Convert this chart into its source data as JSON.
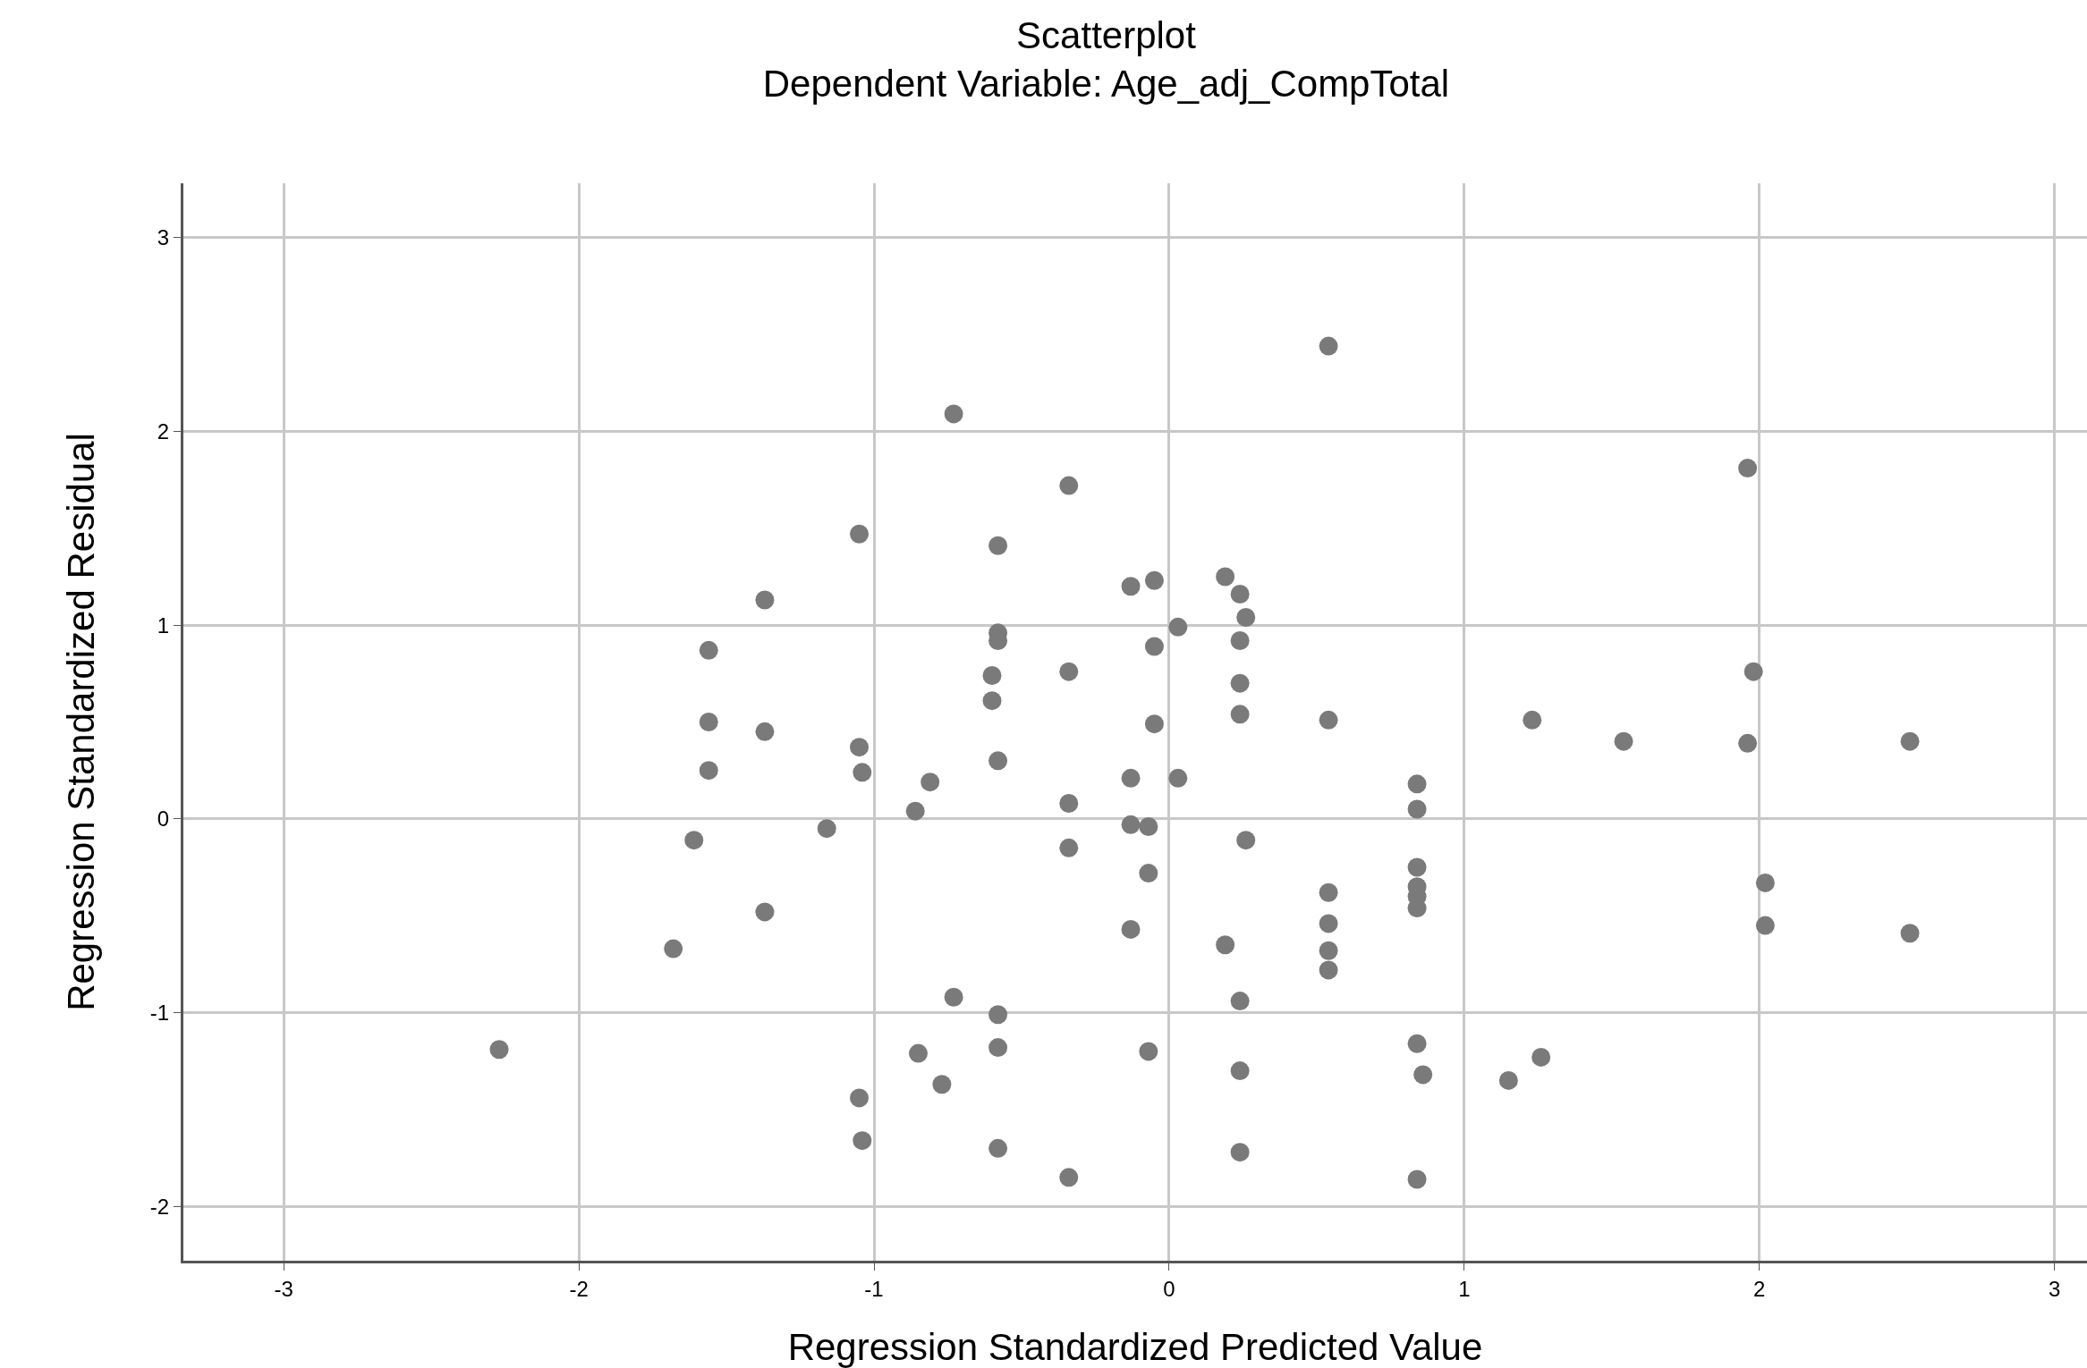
{
  "chart_data": {
    "type": "scatter",
    "title": "Scatterplot",
    "subtitle": "Dependent Variable: Age_adj_CompTotal",
    "xlabel": "Regression Standardized Predicted Value",
    "ylabel": "Regression Standardized Residual",
    "x": [
      -2.27,
      -1.68,
      -1.61,
      -1.56,
      -1.56,
      -1.56,
      -1.37,
      -1.37,
      -1.37,
      -1.16,
      -1.05,
      -1.05,
      -1.04,
      -1.05,
      -1.04,
      -0.86,
      -0.81,
      -0.85,
      -0.77,
      -0.73,
      -0.73,
      -0.6,
      -0.6,
      -0.58,
      -0.58,
      -0.58,
      -0.58,
      -0.58,
      -0.58,
      -0.58,
      -0.34,
      -0.34,
      -0.34,
      -0.34,
      -0.34,
      -0.13,
      -0.13,
      -0.13,
      -0.13,
      -0.07,
      -0.07,
      -0.07,
      -0.05,
      -0.05,
      -0.05,
      0.03,
      0.03,
      0.19,
      0.19,
      0.24,
      0.24,
      0.24,
      0.24,
      0.24,
      0.24,
      0.24,
      0.26,
      0.26,
      0.54,
      0.54,
      0.54,
      0.54,
      0.54,
      0.54,
      0.84,
      0.84,
      0.84,
      0.84,
      0.84,
      0.84,
      0.84,
      0.86,
      0.84,
      1.15,
      1.23,
      1.26,
      1.54,
      1.96,
      1.98,
      1.96,
      2.02,
      2.02,
      2.51,
      2.51
    ],
    "values": [
      -1.19,
      -0.67,
      -0.11,
      0.87,
      0.5,
      0.25,
      1.13,
      0.45,
      -0.48,
      -0.05,
      1.47,
      0.37,
      0.24,
      -1.44,
      -1.66,
      0.04,
      0.19,
      -1.21,
      -1.37,
      2.09,
      -0.92,
      0.74,
      0.61,
      1.41,
      0.96,
      0.92,
      0.3,
      -1.01,
      -1.18,
      -1.7,
      1.72,
      0.76,
      0.08,
      -0.15,
      -1.85,
      1.2,
      0.21,
      -0.03,
      -0.57,
      -0.04,
      -0.28,
      -1.2,
      1.23,
      0.89,
      0.49,
      0.99,
      0.21,
      1.25,
      -0.65,
      1.16,
      0.92,
      0.7,
      0.54,
      -0.94,
      -1.3,
      -1.72,
      1.04,
      -0.11,
      2.44,
      0.51,
      -0.38,
      -0.54,
      -0.68,
      -0.78,
      0.18,
      0.05,
      -0.25,
      -0.35,
      -0.4,
      -0.46,
      -1.16,
      -1.32,
      -1.86,
      -1.35,
      0.51,
      -1.23,
      0.4,
      1.81,
      0.76,
      0.39,
      -0.33,
      -0.55,
      0.4,
      -0.59
    ],
    "color": "#7a7a7a",
    "marker": "circle",
    "grid": true,
    "xlim": [
      -3.34,
      3.11
    ],
    "xticks": [
      -3,
      -2,
      -1,
      0,
      1,
      2,
      3
    ],
    "ylim": [
      -2.28,
      3.28
    ],
    "yticks": [
      -2,
      -1,
      0,
      1,
      2,
      3
    ]
  }
}
